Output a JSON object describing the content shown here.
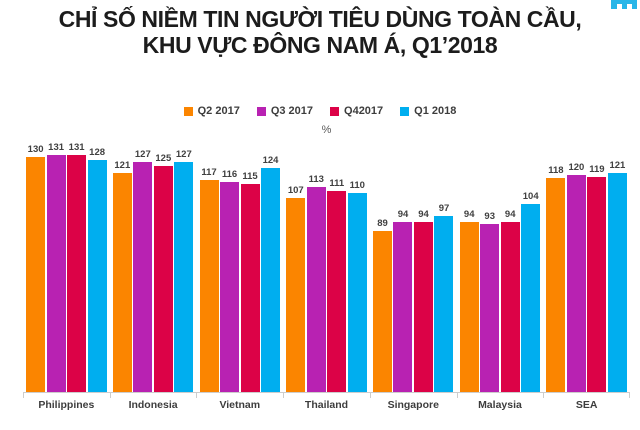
{
  "header": {
    "title_line1": "CHỈ SỐ NIỀM TIN NGƯỜI TIÊU DÙNG TOÀN CẦU,",
    "title_line2": "KHU VỰC ĐÔNG NAM Á, Q1’2018"
  },
  "brand": {
    "icon": "blue-logo-fragment-icon",
    "color": "#29b6e8"
  },
  "chart_data": {
    "type": "bar",
    "title": "CHỈ SỐ NIỀM TIN NGƯỜI TIÊU DÙNG TOÀN CẦU, KHU VỰC ĐÔNG NAM Á, Q1’2018",
    "ylabel": "%",
    "xlabel": "",
    "ylim": [
      0,
      135
    ],
    "grid": false,
    "legend_position": "top",
    "categories": [
      "Philippines",
      "Indonesia",
      "Vietnam",
      "Thailand",
      "Singapore",
      "Malaysia",
      "SEA"
    ],
    "series": [
      {
        "name": "Q2 2017",
        "color": "#FB8500",
        "values": [
          130,
          121,
          117,
          107,
          89,
          94,
          118
        ]
      },
      {
        "name": "Q3 2017",
        "color": "#B822B2",
        "values": [
          131,
          127,
          116,
          113,
          94,
          93,
          120
        ]
      },
      {
        "name": "Q42017",
        "color": "#DC0247",
        "values": [
          131,
          125,
          115,
          111,
          94,
          94,
          119
        ]
      },
      {
        "name": "Q1 2018",
        "color": "#00AEEF",
        "values": [
          128,
          127,
          124,
          110,
          97,
          104,
          121
        ]
      }
    ],
    "axis_color": "#cdcdcd"
  }
}
